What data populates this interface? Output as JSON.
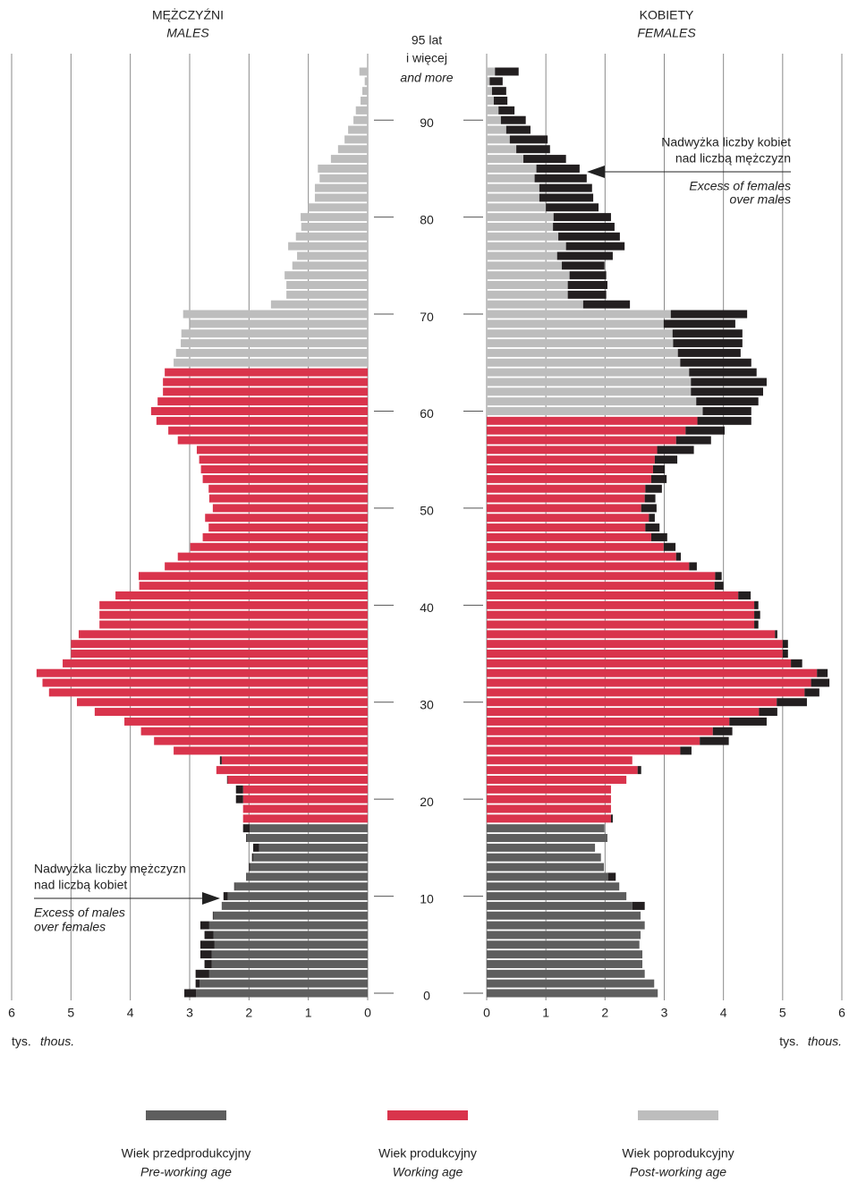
{
  "chart_data": {
    "type": "population_pyramid",
    "categories": [
      "0",
      null,
      null,
      null,
      null,
      null,
      null,
      null,
      null,
      null,
      "10",
      null,
      null,
      null,
      null,
      null,
      null,
      null,
      null,
      null,
      "20",
      null,
      null,
      null,
      null,
      null,
      null,
      null,
      null,
      null,
      "30",
      null,
      null,
      null,
      null,
      null,
      null,
      null,
      null,
      null,
      "40",
      null,
      null,
      null,
      null,
      null,
      null,
      null,
      null,
      null,
      "50",
      null,
      null,
      null,
      null,
      null,
      null,
      null,
      null,
      null,
      "60",
      null,
      null,
      null,
      null,
      null,
      null,
      null,
      null,
      null,
      "70",
      null,
      null,
      null,
      null,
      null,
      null,
      null,
      null,
      null,
      "80",
      null,
      null,
      null,
      null,
      null,
      null,
      null,
      null,
      null,
      "90",
      null,
      null,
      null,
      null,
      null
    ],
    "top_category_label": [
      "95 lat",
      "i więcej",
      "and more"
    ],
    "xlim": [
      0,
      6
    ],
    "xticks": [
      0,
      1,
      2,
      3,
      4,
      5,
      6
    ],
    "unit_label": "tys.",
    "unit_label_en": "thous.",
    "excess_color": "#231f20",
    "age_groups": [
      {
        "name": "Wiek przedprodukcyjny",
        "name_en": "Pre-working age",
        "color": "#5e5e5e"
      },
      {
        "name": "Wiek produkcyjny",
        "name_en": "Working age",
        "color": "#d9344c"
      },
      {
        "name": "Wiek poprodukcyjny",
        "name_en": "Post-working age",
        "color": "#bdbdbd"
      }
    ],
    "series": [
      {
        "name": "MĘŻCZYŹNI",
        "name_en": "MALES",
        "group_start": [
          0,
          18,
          65
        ],
        "values": [
          3.09,
          2.9,
          2.9,
          2.75,
          2.82,
          2.82,
          2.75,
          2.82,
          2.61,
          2.46,
          2.43,
          2.25,
          2.05,
          2.0,
          1.95,
          1.93,
          2.05,
          2.1,
          2.1,
          2.1,
          2.22,
          2.22,
          2.37,
          2.55,
          2.49,
          3.27,
          3.6,
          3.82,
          4.1,
          4.6,
          4.9,
          5.37,
          5.48,
          5.58,
          5.14,
          5.0,
          5.0,
          4.87,
          4.52,
          4.52,
          4.52,
          4.25,
          3.85,
          3.86,
          3.42,
          3.2,
          2.99,
          2.78,
          2.68,
          2.74,
          2.61,
          2.67,
          2.68,
          2.78,
          2.81,
          2.84,
          2.88,
          3.2,
          3.36,
          3.56,
          3.65,
          3.54,
          3.45,
          3.45,
          3.42,
          3.27,
          3.23,
          3.15,
          3.14,
          2.99,
          3.11,
          1.63,
          1.37,
          1.37,
          1.4,
          1.27,
          1.19,
          1.34,
          1.21,
          1.12,
          1.13,
          1.0,
          0.89,
          0.89,
          0.81,
          0.84,
          0.62,
          0.5,
          0.39,
          0.33,
          0.24,
          0.2,
          0.12,
          0.09,
          0.05,
          0.14
        ],
        "annotation": [
          "Nadwyżka liczby mężczyzn",
          "nad liczbą kobiet"
        ],
        "annotation_en": [
          "Excess of males",
          "over females"
        ]
      },
      {
        "name": "KOBIETY",
        "name_en": "FEMALES",
        "group_start": [
          0,
          18,
          60
        ],
        "values": [
          2.89,
          2.83,
          2.67,
          2.63,
          2.63,
          2.58,
          2.6,
          2.67,
          2.6,
          2.67,
          2.36,
          2.24,
          2.18,
          1.98,
          1.93,
          1.83,
          2.04,
          1.99,
          2.13,
          2.1,
          2.1,
          2.1,
          2.36,
          2.61,
          2.46,
          3.46,
          4.09,
          4.15,
          4.73,
          4.91,
          5.41,
          5.62,
          5.79,
          5.76,
          5.33,
          5.09,
          5.09,
          4.91,
          4.59,
          4.62,
          4.59,
          4.46,
          4.0,
          3.97,
          3.55,
          3.28,
          3.19,
          3.05,
          2.92,
          2.84,
          2.87,
          2.85,
          2.96,
          3.04,
          3.01,
          3.22,
          3.5,
          3.79,
          4.02,
          4.47,
          4.47,
          4.59,
          4.67,
          4.73,
          4.56,
          4.47,
          4.29,
          4.32,
          4.32,
          4.2,
          4.4,
          2.42,
          2.02,
          2.04,
          2.02,
          1.99,
          2.13,
          2.33,
          2.25,
          2.16,
          2.1,
          1.89,
          1.8,
          1.78,
          1.69,
          1.57,
          1.34,
          1.07,
          1.03,
          0.74,
          0.66,
          0.47,
          0.35,
          0.33,
          0.27,
          0.54
        ],
        "annotation": [
          "Nadwyżka liczby kobiet",
          "nad liczbą mężczyzn"
        ],
        "annotation_en": [
          "Excess of females",
          "over males"
        ]
      }
    ]
  }
}
